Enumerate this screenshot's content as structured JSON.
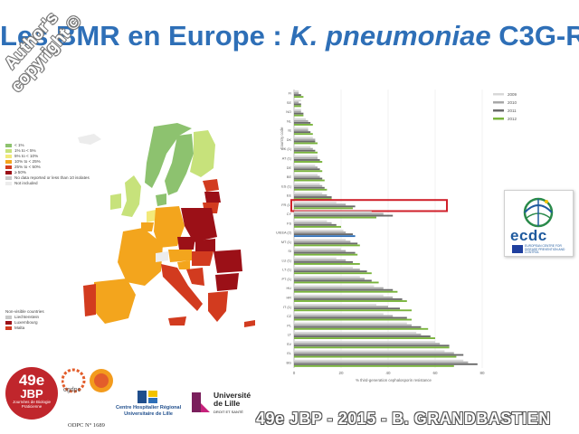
{
  "title": {
    "prefix": "Les BMR en Europe : ",
    "italic": "K. pneumoniae",
    "suffix": " C3G-R"
  },
  "watermark": {
    "line1": "Author's",
    "line2": "copyright ©"
  },
  "map": {
    "legend": [
      {
        "label": "< 1%",
        "color": "#8dc26f"
      },
      {
        "label": "1% to < 5%",
        "color": "#c7e27b"
      },
      {
        "label": "5% to < 10%",
        "color": "#f3e97a"
      },
      {
        "label": "10% to < 25%",
        "color": "#f3a51d"
      },
      {
        "label": "25% to < 50%",
        "color": "#d23b1f"
      },
      {
        "label": "≥ 50%",
        "color": "#9b1017"
      },
      {
        "label": "No data reported or less than 10 isolates",
        "color": "#c8c8c8"
      },
      {
        "label": "Not included",
        "color": "#ececec"
      }
    ],
    "nonvisible_title": "Non-visible countries",
    "nonvisible": [
      {
        "label": "Liechtenstein",
        "color": "#c8c8c8"
      },
      {
        "label": "Luxembourg",
        "color": "#9b1017"
      },
      {
        "label": "Malta",
        "color": "#d23b1f"
      }
    ]
  },
  "chart_data": {
    "type": "bar",
    "orientation": "horizontal",
    "ylabel": "Country code",
    "xlabel": "% third-generation cephalosporin resistance",
    "xlim": [
      0,
      100
    ],
    "xticks": [
      "0",
      "20",
      "40",
      "60",
      "80"
    ],
    "categories": [
      "FI",
      "SE",
      "NO",
      "NL",
      "IE",
      "DK",
      "UK (1)",
      "AT (1)",
      "DE",
      "BE",
      "ES (1)",
      "EE",
      "FR (1)",
      "CY",
      "FS",
      "EU/EEA (2)",
      "MT (1)",
      "SI",
      "LU (1)",
      "LT (1)",
      "PT (1)",
      "HU",
      "HR",
      "IT (1)",
      "CZ",
      "PL",
      "LT",
      "SV",
      "EL",
      "BG"
    ],
    "highlight": "FR (1)",
    "series": [
      {
        "name": "2009",
        "color": "#d8d8d8",
        "values": [
          2,
          3,
          3,
          5,
          6,
          8,
          7,
          10,
          9,
          10,
          11,
          12,
          18,
          33,
          14,
          21,
          22,
          20,
          18,
          25,
          28,
          34,
          38,
          35,
          38,
          48,
          52,
          60,
          64,
          72
        ]
      },
      {
        "name": "2010",
        "color": "#a8a8a8",
        "values": [
          2,
          2,
          3,
          6,
          6,
          9,
          8,
          10,
          10,
          11,
          12,
          14,
          22,
          38,
          16,
          22,
          24,
          22,
          22,
          28,
          30,
          38,
          42,
          40,
          42,
          50,
          54,
          62,
          68,
          74
        ]
      },
      {
        "name": "2011",
        "color": "#6a6a6a",
        "values": [
          3,
          3,
          4,
          7,
          7,
          9,
          9,
          11,
          11,
          12,
          13,
          16,
          26,
          42,
          18,
          25,
          27,
          26,
          25,
          31,
          33,
          42,
          46,
          45,
          48,
          54,
          58,
          66,
          72,
          78
        ]
      },
      {
        "name": "2012",
        "color": "#79b43c",
        "values": [
          4,
          3,
          4,
          8,
          8,
          10,
          10,
          12,
          12,
          13,
          14,
          16,
          25,
          35,
          20,
          26,
          28,
          27,
          28,
          33,
          36,
          44,
          48,
          50,
          50,
          57,
          60,
          66,
          69,
          68
        ]
      }
    ]
  },
  "ecdc": {
    "name": "ecdc",
    "subtitle": "EUROPEAN CENTRE FOR DISEASE PREVENTION AND CONTROL"
  },
  "footer": {
    "jbp_number": "49e",
    "jbp_label": "JBP",
    "jbp_sub": "Journées de Biologie Praticienne",
    "ogdpc": "ogdpc",
    "odpc": "ODPC N° 1689",
    "chr_line1": "Centre Hospitalier Régional",
    "chr_line2": "Universitaire de Lille",
    "univ_line1": "Université",
    "univ_line2": "de Lille",
    "univ_sub": "DROIT ET SANTÉ",
    "author": "49e JBP - 2015 - B. GRANDBASTIEN"
  }
}
